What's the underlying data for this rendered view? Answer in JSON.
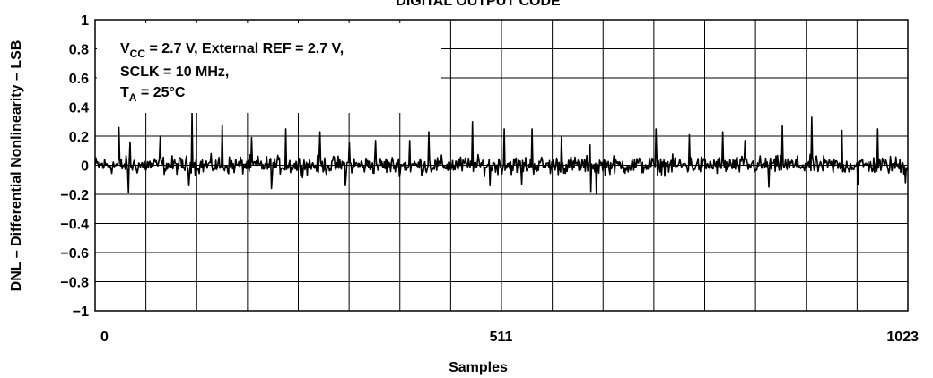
{
  "chart_data": {
    "type": "line",
    "title": "DIGITAL OUTPUT CODE",
    "xlabel": "Samples",
    "ylabel": "DNL – Differential Nonlinearity – LSB",
    "xlim": [
      0,
      1023
    ],
    "ylim": [
      -1,
      1
    ],
    "xticks": [
      0,
      511,
      1023
    ],
    "xtick_labels": [
      "0",
      "511",
      "1023"
    ],
    "yticks": [
      1,
      0.8,
      0.6,
      0.4,
      0.2,
      0,
      -0.2,
      -0.4,
      -0.6,
      -0.8,
      -1
    ],
    "ytick_labels": [
      "1",
      "0.8",
      "0.6",
      "0.4",
      "0.2",
      "0",
      "−0.2",
      "−0.4",
      "−0.6",
      "−0.8",
      "−1"
    ],
    "grid": true,
    "annotation": {
      "line1_pre": "V",
      "line1_sub": "CC",
      "line1_post": " = 2.7 V, External REF = 2.7 V,",
      "line2": "SCLK = 10 MHz,",
      "line3_pre": "T",
      "line3_sub": "A",
      "line3_post": " = 25°C"
    },
    "baseline_noise_band": [
      -0.09,
      0.09
    ],
    "spikes": [
      {
        "x": 30,
        "y": 0.26
      },
      {
        "x": 44,
        "y": 0.16
      },
      {
        "x": 82,
        "y": 0.2
      },
      {
        "x": 122,
        "y": 0.36
      },
      {
        "x": 160,
        "y": 0.28
      },
      {
        "x": 197,
        "y": 0.19
      },
      {
        "x": 240,
        "y": 0.25
      },
      {
        "x": 283,
        "y": 0.23
      },
      {
        "x": 320,
        "y": 0.16
      },
      {
        "x": 353,
        "y": 0.17
      },
      {
        "x": 396,
        "y": 0.17
      },
      {
        "x": 420,
        "y": 0.23
      },
      {
        "x": 475,
        "y": 0.3
      },
      {
        "x": 515,
        "y": 0.25
      },
      {
        "x": 550,
        "y": 0.25
      },
      {
        "x": 587,
        "y": 0.2
      },
      {
        "x": 623,
        "y": 0.14
      },
      {
        "x": 706,
        "y": 0.25
      },
      {
        "x": 748,
        "y": 0.21
      },
      {
        "x": 790,
        "y": 0.23
      },
      {
        "x": 818,
        "y": 0.17
      },
      {
        "x": 865,
        "y": 0.27
      },
      {
        "x": 902,
        "y": 0.33
      },
      {
        "x": 940,
        "y": 0.24
      },
      {
        "x": 985,
        "y": 0.25
      }
    ],
    "dips": [
      {
        "x": 42,
        "y": -0.19
      },
      {
        "x": 118,
        "y": -0.14
      },
      {
        "x": 222,
        "y": -0.16
      },
      {
        "x": 315,
        "y": -0.14
      },
      {
        "x": 497,
        "y": -0.14
      },
      {
        "x": 537,
        "y": -0.13
      },
      {
        "x": 624,
        "y": -0.18
      },
      {
        "x": 631,
        "y": -0.2
      },
      {
        "x": 848,
        "y": -0.15
      },
      {
        "x": 960,
        "y": -0.13
      },
      {
        "x": 1020,
        "y": -0.12
      }
    ]
  }
}
